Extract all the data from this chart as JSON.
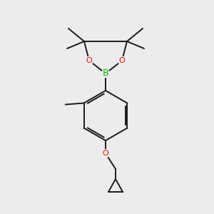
{
  "bg_color": "#ececec",
  "bond_color": "#1a1a1a",
  "bond_width": 1.4,
  "atom_colors": {
    "B": "#00bb00",
    "O": "#ee1100"
  },
  "figsize": [
    3.0,
    3.0
  ],
  "dpi": 100
}
